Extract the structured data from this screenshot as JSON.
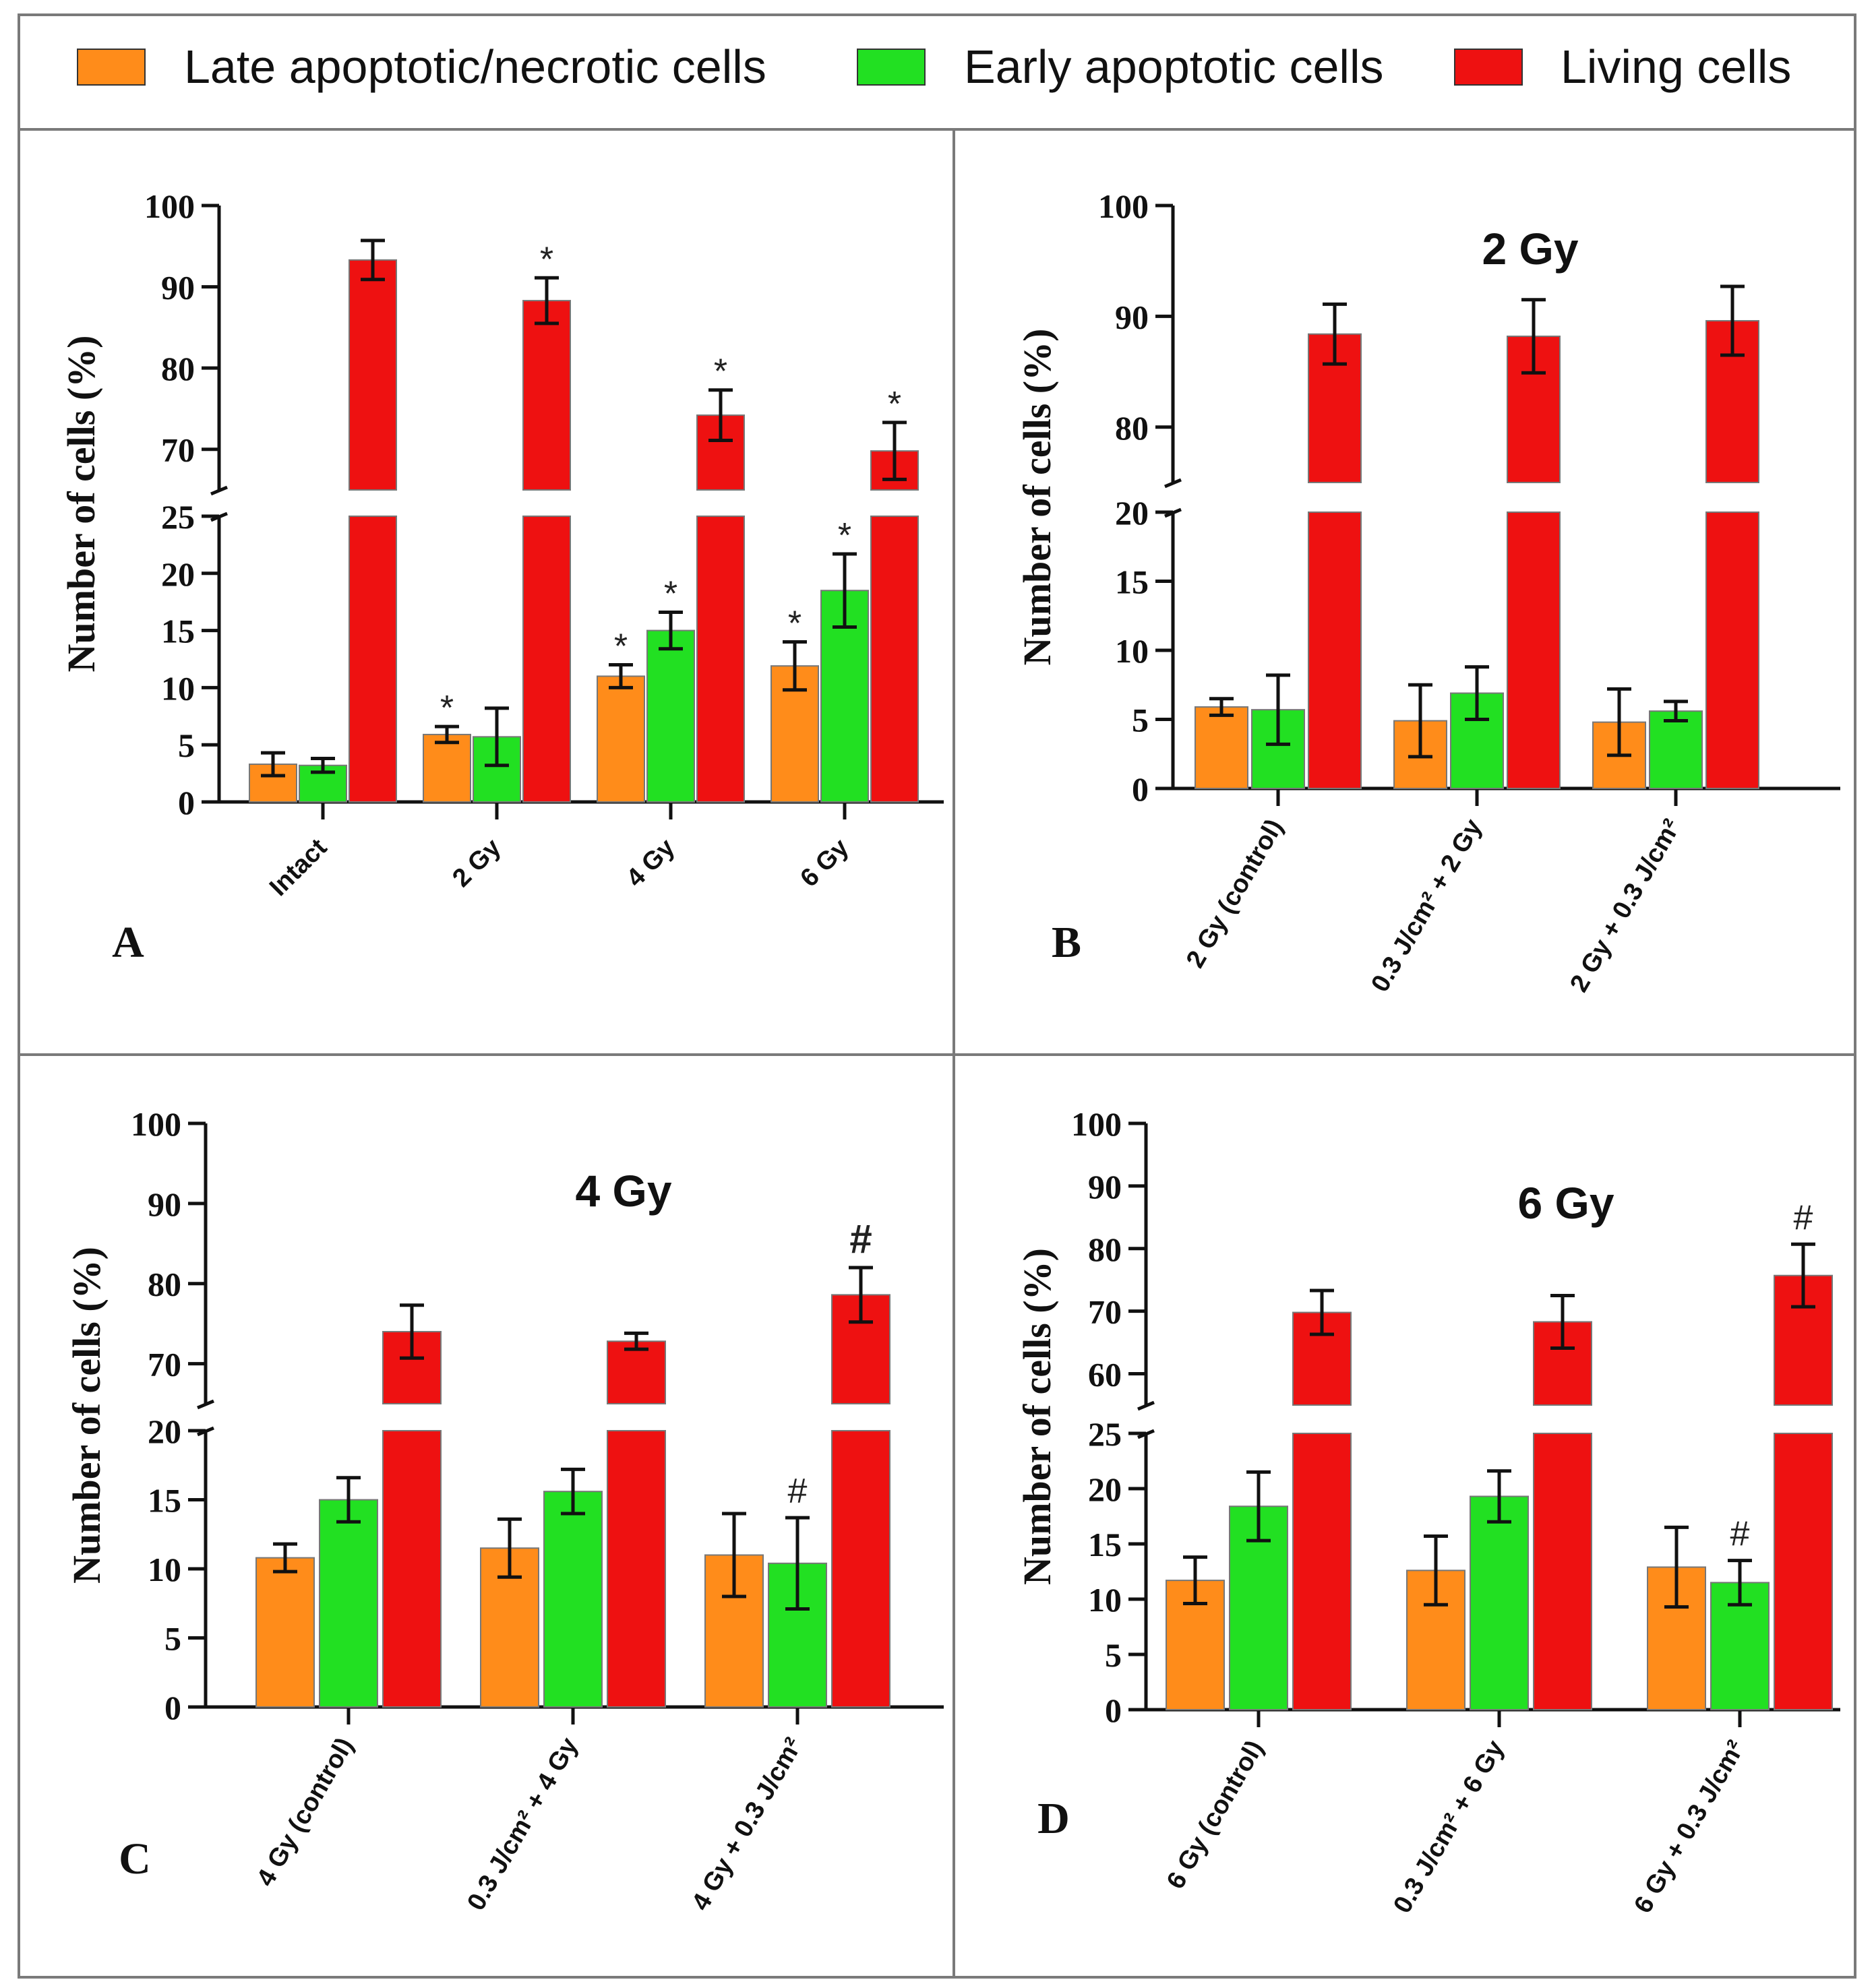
{
  "legend": {
    "items": [
      {
        "label": "Late apoptotic/necrotic cells",
        "color": "#ff8c1a"
      },
      {
        "label": "Early apoptotic cells",
        "color": "#22e022"
      },
      {
        "label": "Living cells",
        "color": "#ee1111"
      }
    ]
  },
  "colors": {
    "late": "#ff8c1a",
    "early": "#22e022",
    "living": "#ee1111",
    "panel_border": "#888888"
  },
  "chart_data": [
    {
      "panel": "A",
      "type": "bar",
      "title": "",
      "xlabel": "",
      "ylabel": "Number of cells (%)",
      "y_broken": true,
      "ylim_lower": [
        0,
        25
      ],
      "ylim_upper": [
        65,
        100
      ],
      "yticks_lower": [
        0,
        5,
        10,
        15,
        20,
        25
      ],
      "yticks_upper": [
        70,
        80,
        90,
        100
      ],
      "categories": [
        "Intact",
        "2 Gy",
        "4 Gy",
        "6 Gy"
      ],
      "series": [
        {
          "name": "Late apoptotic/necrotic cells",
          "values": [
            3.3,
            5.9,
            11.0,
            11.9
          ],
          "errors": [
            1.0,
            0.7,
            1.0,
            2.1
          ],
          "marks": [
            "",
            "*",
            "*",
            "*"
          ]
        },
        {
          "name": "Early apoptotic cells",
          "values": [
            3.2,
            5.7,
            15.0,
            18.5
          ],
          "errors": [
            0.6,
            2.5,
            1.6,
            3.2
          ],
          "marks": [
            "",
            "",
            "*",
            "*"
          ]
        },
        {
          "name": "Living cells",
          "values": [
            93.3,
            88.3,
            74.2,
            69.8
          ],
          "errors": [
            2.4,
            2.8,
            3.1,
            3.5
          ],
          "marks": [
            "",
            "*",
            "*",
            "*"
          ]
        }
      ]
    },
    {
      "panel": "B",
      "type": "bar",
      "title": "2 Gy",
      "xlabel": "",
      "ylabel": "Number of cells (%)",
      "y_broken": true,
      "ylim_lower": [
        0,
        20
      ],
      "ylim_upper": [
        75,
        100
      ],
      "yticks_lower": [
        0,
        5,
        10,
        15,
        20
      ],
      "yticks_upper": [
        80,
        90,
        100
      ],
      "categories": [
        "2 Gy (control)",
        "0.3 J/cm² + 2 Gy",
        "2 Gy + 0.3 J/cm²"
      ],
      "series": [
        {
          "name": "Late apoptotic/necrotic cells",
          "values": [
            5.9,
            4.9,
            4.8
          ],
          "errors": [
            0.6,
            2.6,
            2.4
          ],
          "marks": [
            "",
            "",
            ""
          ]
        },
        {
          "name": "Early apoptotic cells",
          "values": [
            5.7,
            6.9,
            5.6
          ],
          "errors": [
            2.5,
            1.9,
            0.7
          ],
          "marks": [
            "",
            "",
            ""
          ]
        },
        {
          "name": "Living cells",
          "values": [
            88.4,
            88.2,
            89.6
          ],
          "errors": [
            2.7,
            3.3,
            3.1
          ],
          "marks": [
            "",
            "",
            ""
          ]
        }
      ]
    },
    {
      "panel": "C",
      "type": "bar",
      "title": "4 Gy",
      "xlabel": "",
      "ylabel": "Number of cells (%)",
      "y_broken": true,
      "ylim_lower": [
        0,
        20
      ],
      "ylim_upper": [
        65,
        100
      ],
      "yticks_lower": [
        0,
        5,
        10,
        15,
        20
      ],
      "yticks_upper": [
        70,
        80,
        90,
        100
      ],
      "categories": [
        "4 Gy (control)",
        "0.3 J/cm² + 4 Gy",
        "4 Gy + 0.3 J/cm²"
      ],
      "series": [
        {
          "name": "Late apoptotic/necrotic cells",
          "values": [
            10.8,
            11.5,
            11.0
          ],
          "errors": [
            1.0,
            2.1,
            3.0
          ],
          "marks": [
            "",
            "",
            ""
          ]
        },
        {
          "name": "Early apoptotic cells",
          "values": [
            15.0,
            15.6,
            10.4
          ],
          "errors": [
            1.6,
            1.6,
            3.3
          ],
          "marks": [
            "",
            "",
            "#"
          ]
        },
        {
          "name": "Living cells",
          "values": [
            74.0,
            72.8,
            78.6
          ],
          "errors": [
            3.3,
            1.0,
            3.4
          ],
          "marks": [
            "",
            "",
            "#"
          ]
        }
      ]
    },
    {
      "panel": "D",
      "type": "bar",
      "title": "6 Gy",
      "xlabel": "",
      "ylabel": "Number of cells (%)",
      "y_broken": true,
      "ylim_lower": [
        0,
        25
      ],
      "ylim_upper": [
        55,
        100
      ],
      "yticks_lower": [
        0,
        5,
        10,
        15,
        20,
        25
      ],
      "yticks_upper": [
        60,
        70,
        80,
        90,
        100
      ],
      "categories": [
        "6 Gy (control)",
        "0.3 J/cm² + 6 Gy",
        "6 Gy + 0.3 J/cm²"
      ],
      "series": [
        {
          "name": "Late apoptotic/necrotic cells",
          "values": [
            11.7,
            12.6,
            12.9
          ],
          "errors": [
            2.1,
            3.1,
            3.6
          ],
          "marks": [
            "",
            "",
            ""
          ]
        },
        {
          "name": "Early apoptotic cells",
          "values": [
            18.4,
            19.3,
            11.5
          ],
          "errors": [
            3.1,
            2.3,
            2.0
          ],
          "marks": [
            "",
            "",
            "#"
          ]
        },
        {
          "name": "Living cells",
          "values": [
            69.8,
            68.3,
            75.7
          ],
          "errors": [
            3.5,
            4.2,
            5.0
          ],
          "marks": [
            "",
            "",
            "#"
          ]
        }
      ]
    }
  ]
}
